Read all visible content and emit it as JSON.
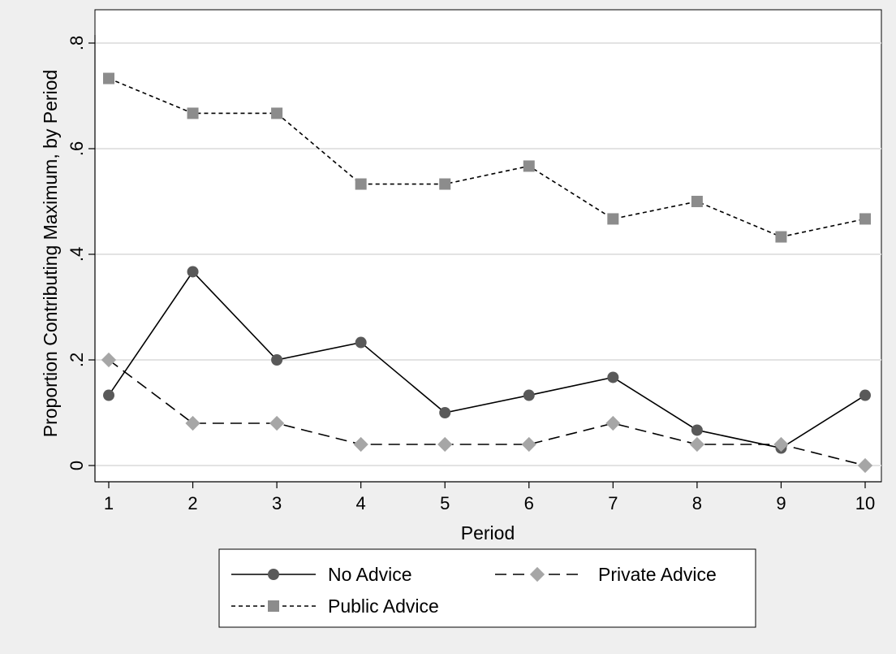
{
  "chart_data": {
    "type": "line",
    "xlabel": "Period",
    "ylabel": "Proportion Contributing Maximum, by Period",
    "x": [
      1,
      2,
      3,
      4,
      5,
      6,
      7,
      8,
      9,
      10
    ],
    "xticks": [
      "1",
      "2",
      "3",
      "4",
      "5",
      "6",
      "7",
      "8",
      "9",
      "10"
    ],
    "xlim": [
      1,
      10
    ],
    "ylim": [
      0,
      0.8
    ],
    "yticks": [
      {
        "value": 0,
        "label": "0"
      },
      {
        "value": 0.2,
        "label": ".2"
      },
      {
        "value": 0.4,
        "label": ".4"
      },
      {
        "value": 0.6,
        "label": ".6"
      },
      {
        "value": 0.8,
        "label": ".8"
      }
    ],
    "grid": true,
    "legend_position": "bottom",
    "series": [
      {
        "name": "No Advice",
        "values": [
          0.133,
          0.367,
          0.2,
          0.233,
          0.1,
          0.133,
          0.167,
          0.067,
          0.033,
          0.133
        ],
        "color": "#595959",
        "line_style": "solid",
        "marker": "circle"
      },
      {
        "name": "Private Advice",
        "values": [
          0.2,
          0.08,
          0.08,
          0.04,
          0.04,
          0.04,
          0.08,
          0.04,
          0.04,
          0.0
        ],
        "color": "#a6a6a6",
        "line_style": "dashed",
        "marker": "diamond"
      },
      {
        "name": "Public Advice",
        "values": [
          0.733,
          0.667,
          0.667,
          0.533,
          0.533,
          0.567,
          0.467,
          0.5,
          0.433,
          0.467
        ],
        "color": "#8c8c8c",
        "line_style": "dotted",
        "marker": "square"
      }
    ]
  }
}
